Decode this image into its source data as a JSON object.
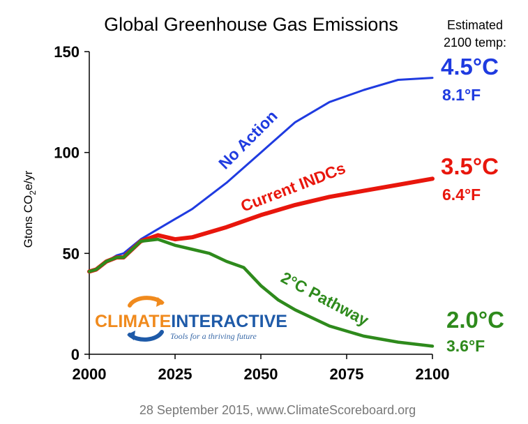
{
  "chart_data": {
    "type": "line",
    "title": "Global Greenhouse Gas Emissions",
    "ylabel": "Gtons CO2e/yr",
    "ylabel_parts": {
      "pre": "Gtons CO",
      "sub": "2",
      "post": "e/yr"
    },
    "xlabel": "",
    "xlim": [
      2000,
      2100
    ],
    "ylim": [
      0,
      150
    ],
    "x_ticks": [
      "2000",
      "2025",
      "2050",
      "2075",
      "2100"
    ],
    "y_ticks": [
      "0",
      "50",
      "100",
      "150"
    ],
    "grid": false,
    "legend": "none",
    "series": [
      {
        "name": "No Action",
        "color": "#1f3be0",
        "temp_c": "4.5°C",
        "temp_f": "8.1°F",
        "x": [
          2000,
          2002,
          2005,
          2008,
          2010,
          2015,
          2020,
          2025,
          2030,
          2040,
          2050,
          2060,
          2070,
          2080,
          2090,
          2100
        ],
        "y": [
          41,
          42,
          46,
          49,
          50,
          57,
          62,
          67,
          72,
          85,
          100,
          115,
          125,
          131,
          136,
          137
        ]
      },
      {
        "name": "Current INDCs",
        "color": "#e8160c",
        "temp_c": "3.5°C",
        "temp_f": "6.4°F",
        "x": [
          2000,
          2002,
          2005,
          2008,
          2010,
          2015,
          2020,
          2025,
          2030,
          2040,
          2050,
          2060,
          2070,
          2080,
          2090,
          2100
        ],
        "y": [
          41,
          42,
          46,
          48,
          48,
          56,
          59,
          57,
          58,
          63,
          69,
          74,
          78,
          81,
          84,
          87
        ]
      },
      {
        "name": "2°C Pathway",
        "color": "#2e8a1c",
        "temp_c": "2.0°C",
        "temp_f": "3.6°F",
        "x": [
          2000,
          2002,
          2005,
          2008,
          2010,
          2015,
          2020,
          2025,
          2030,
          2035,
          2040,
          2045,
          2050,
          2055,
          2060,
          2070,
          2080,
          2090,
          2100
        ],
        "y": [
          41,
          42,
          46,
          48,
          48,
          56,
          57,
          54,
          52,
          50,
          46,
          43,
          34,
          27,
          22,
          14,
          9,
          6,
          4
        ]
      }
    ],
    "annotation": "Estimated 2100 temp:",
    "annotation_lines": [
      "Estimated",
      "2100 temp:"
    ],
    "footer": "28 September 2015, www.ClimateScoreboard.org"
  },
  "logo": {
    "word1": "CLIMATE",
    "word2": "INTERACTIVE",
    "tagline": "Tools for a thriving future",
    "color1": "#f08a1d",
    "color2": "#1e5aa8"
  }
}
